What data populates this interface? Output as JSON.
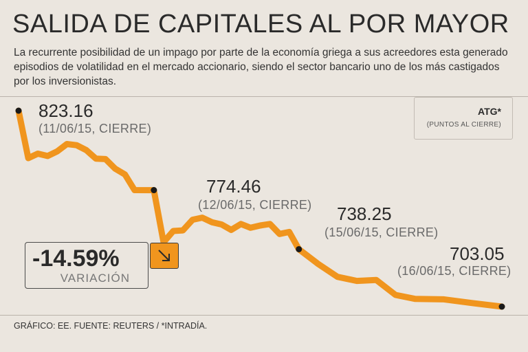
{
  "title": "SALIDA DE CAPITALES AL POR MAYOR",
  "subtitle": "La recurrente posibilidad de un impago por parte de la economía griega a sus acreedores esta generado episodios de volatilidad en el mercado accionario, siendo el sector bancario uno de los más castigados por los inversionistas.",
  "legend": {
    "title": "ATG*",
    "subtitle": "(PUNTOS AL CIERRE)"
  },
  "variation": {
    "value": "-14.59%",
    "label": "VARIACIÓN",
    "icon": "arrow-down-right-icon"
  },
  "footer": "GRÁFICO: EE. FUENTE: REUTERS / *INTRADÍA.",
  "colors": {
    "line": "#f0951e",
    "background": "#ebe6df",
    "marker": "#1a1a1a"
  },
  "chart_data": {
    "type": "line",
    "title": "SALIDA DE CAPITALES AL POR MAYOR",
    "series_name": "ATG*",
    "unit": "PUNTOS AL CIERRE",
    "ylim": [
      700,
      830
    ],
    "x_range": [
      0,
      56
    ],
    "values": [
      823.16,
      794.1,
      796.8,
      795.4,
      798.2,
      802.7,
      802.0,
      799.0,
      793.8,
      793.5,
      787.6,
      784.1,
      774.5,
      774.46,
      742.5,
      749.4,
      749.8,
      756.3,
      757.6,
      754.8,
      753.4,
      750.1,
      753.7,
      751.4,
      752.8,
      753.7,
      747.6,
      748.8,
      738.25,
      729.2,
      721.3,
      718.8,
      719.4,
      710.2,
      707.8,
      707.5,
      705.2,
      703.05
    ],
    "x": [
      0,
      1,
      2,
      3,
      4,
      5,
      6,
      7,
      8,
      9,
      10,
      11,
      12,
      14,
      15,
      16,
      17,
      18,
      19,
      20,
      21,
      22,
      23,
      24,
      25,
      26,
      27,
      28,
      29,
      31,
      33,
      35,
      37,
      39,
      41,
      44,
      47,
      50
    ],
    "annotations": [
      {
        "index": 0,
        "value": "823.16",
        "date": "(11/06/15, CIERRE)"
      },
      {
        "index": 13,
        "value": "774.46",
        "date": "(12/06/15, CIERRE)"
      },
      {
        "index": 28,
        "value": "738.25",
        "date": "(15/06/15, CIERRE)"
      },
      {
        "index": 37,
        "value": "703.05",
        "date": "(16/06/15, CIERRE)"
      }
    ]
  }
}
